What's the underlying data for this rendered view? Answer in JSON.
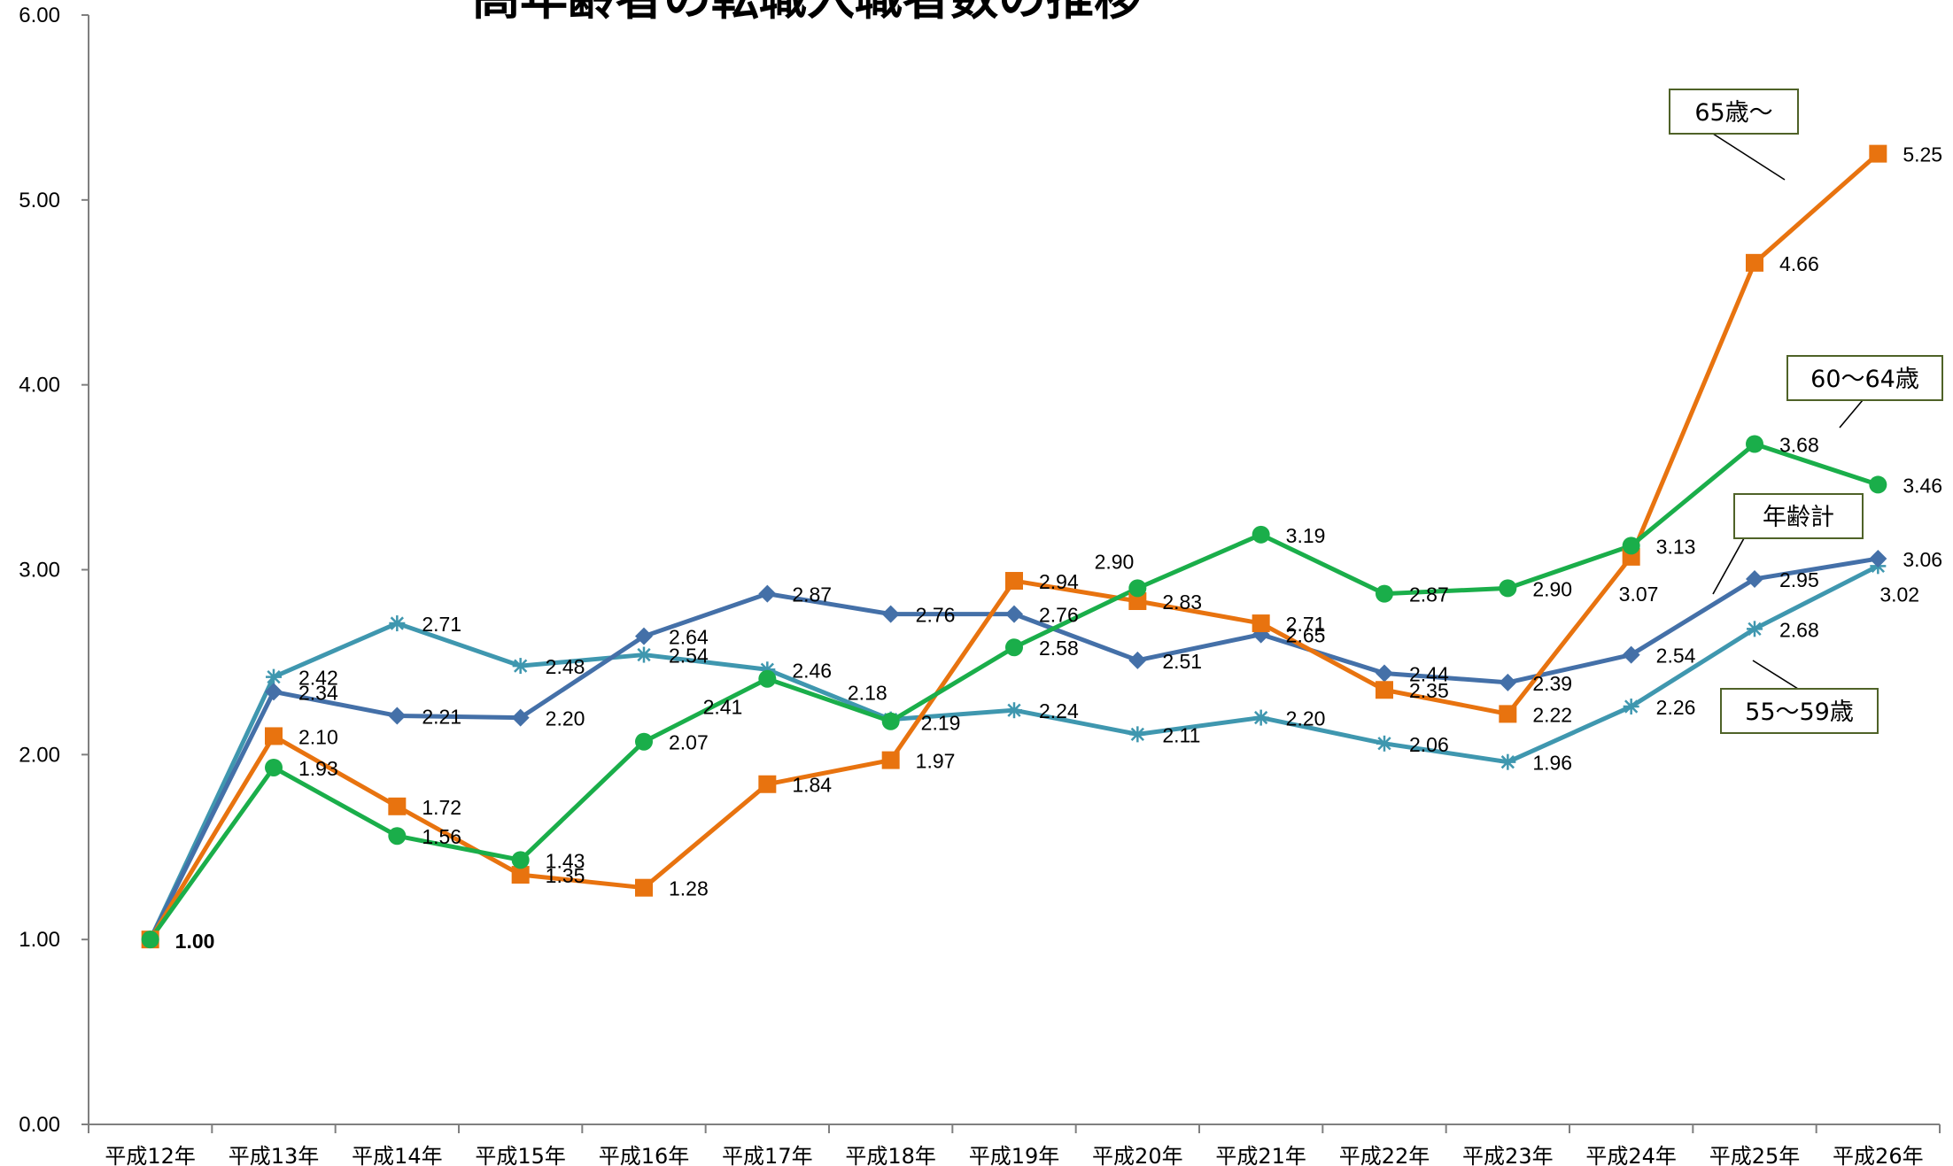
{
  "chart_data": {
    "type": "line",
    "title": "高年齢者の転職入職者数の推移",
    "categories": [
      "平成12年",
      "平成13年",
      "平成14年",
      "平成15年",
      "平成16年",
      "平成17年",
      "平成18年",
      "平成19年",
      "平成20年",
      "平成21年",
      "平成22年",
      "平成23年",
      "平成24年",
      "平成25年",
      "平成26年"
    ],
    "ylim": [
      0,
      6
    ],
    "yticks": [
      "0.00",
      "1.00",
      "2.00",
      "3.00",
      "4.00",
      "5.00",
      "6.00"
    ],
    "grid": false,
    "legend": "inline-callouts",
    "series": [
      {
        "name": "年齢計",
        "color": "#4470A8",
        "marker": "diamond",
        "values": [
          1.0,
          2.34,
          2.21,
          2.2,
          2.64,
          2.87,
          2.76,
          2.76,
          2.51,
          2.65,
          2.44,
          2.39,
          2.54,
          2.95,
          3.06
        ],
        "labels": [
          "",
          "2.34",
          "2.21",
          "2.20",
          "2.64",
          "2.87",
          "2.76",
          "2.76",
          "2.51",
          "2.65",
          "2.44",
          "2.39",
          "2.54",
          "2.95",
          "3.06"
        ]
      },
      {
        "name": "65歳～",
        "color": "#E8730F",
        "marker": "square",
        "values": [
          1.0,
          2.1,
          1.72,
          1.35,
          1.28,
          1.84,
          1.97,
          2.94,
          2.83,
          2.71,
          2.35,
          2.22,
          3.07,
          4.66,
          5.25
        ],
        "labels": [
          "1.00",
          "2.10",
          "1.72",
          "1.35",
          "1.28",
          "1.84",
          "1.97",
          "2.94",
          "2.83",
          "2.71",
          "2.35",
          "2.22",
          "3.07",
          "4.66",
          "5.25"
        ]
      },
      {
        "name": "60～64歳",
        "color": "#1AAE4A",
        "marker": "circle",
        "values": [
          1.0,
          1.93,
          1.56,
          1.43,
          2.07,
          2.41,
          2.18,
          2.58,
          2.9,
          3.19,
          2.87,
          2.9,
          3.13,
          3.68,
          3.46
        ],
        "labels": [
          "",
          "1.93",
          "1.56",
          "1.43",
          "2.07",
          "2.41",
          "2.18",
          "2.58",
          "2.90",
          "3.19",
          "2.87",
          "2.90",
          "3.13",
          "3.68",
          "3.46"
        ]
      },
      {
        "name": "55～59歳",
        "color": "#3F97AF",
        "marker": "star",
        "values": [
          1.0,
          2.42,
          2.71,
          2.48,
          2.54,
          2.46,
          2.19,
          2.24,
          2.11,
          2.2,
          2.06,
          1.96,
          2.26,
          2.68,
          3.02
        ],
        "labels": [
          "",
          "2.42",
          "2.71",
          "2.48",
          "2.54",
          "2.46",
          "2.19",
          "2.24",
          "2.11",
          "2.20",
          "2.06",
          "1.96",
          "2.26",
          "2.68",
          "3.02"
        ]
      }
    ]
  }
}
